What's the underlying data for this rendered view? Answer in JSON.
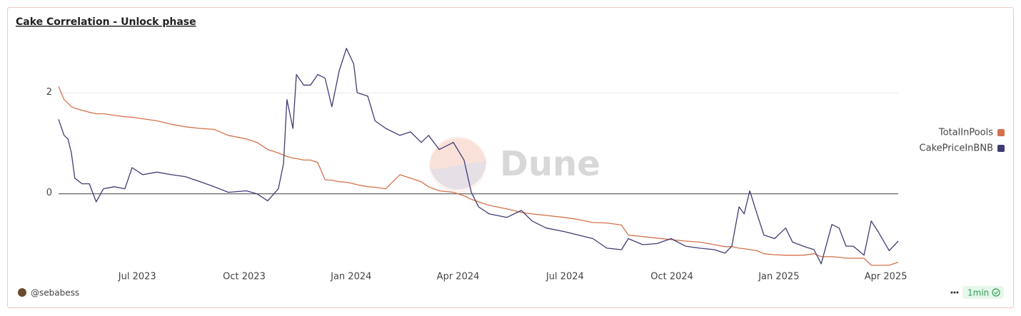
{
  "chart_data": {
    "type": "line",
    "title": "Cake Correlation - Unlock phase",
    "x": [
      2023.316,
      2023.329,
      2023.338,
      2023.346,
      2023.354,
      2023.371,
      2023.388,
      2023.404,
      2023.421,
      2023.446,
      2023.471,
      2023.488,
      2023.513,
      2023.546,
      2023.58,
      2023.613,
      2023.647,
      2023.68,
      2023.713,
      2023.755,
      2023.78,
      2023.805,
      2023.83,
      2023.842,
      2023.85,
      2023.864,
      2023.872,
      2023.889,
      2023.905,
      2023.922,
      2023.939,
      2023.955,
      2023.972,
      2023.989,
      2024.006,
      2024.014,
      2024.039,
      2024.056,
      2024.081,
      2024.114,
      2024.139,
      2024.164,
      2024.181,
      2024.206,
      2024.239,
      2024.264,
      2024.281,
      2024.298,
      2024.323,
      2024.364,
      2024.398,
      2024.423,
      2024.456,
      2024.498,
      2024.531,
      2024.565,
      2024.598,
      2024.632,
      2024.648,
      2024.682,
      2024.715,
      2024.748,
      2024.782,
      2024.815,
      2024.849,
      2024.874,
      2024.89,
      2024.907,
      2024.919,
      2024.932,
      2024.949,
      2024.965,
      2024.99,
      2025.016,
      2025.032,
      2025.057,
      2025.082,
      2025.099,
      2025.124,
      2025.141,
      2025.157,
      2025.174,
      2025.199,
      2025.216,
      2025.232,
      2025.258,
      2025.279
    ],
    "series": [
      {
        "name": "TotalInPools",
        "color": "#d4724c",
        "values": [
          2.13,
          1.87,
          1.8,
          1.73,
          1.7,
          1.66,
          1.62,
          1.59,
          1.59,
          1.56,
          1.53,
          1.52,
          1.49,
          1.45,
          1.38,
          1.33,
          1.3,
          1.28,
          1.16,
          1.09,
          1.02,
          0.88,
          0.81,
          0.77,
          0.74,
          0.71,
          0.7,
          0.67,
          0.67,
          0.62,
          0.28,
          0.27,
          0.24,
          0.23,
          0.2,
          0.18,
          0.14,
          0.13,
          0.1,
          0.38,
          0.31,
          0.24,
          0.14,
          0.06,
          0.03,
          -0.04,
          -0.11,
          -0.16,
          -0.23,
          -0.3,
          -0.37,
          -0.4,
          -0.43,
          -0.47,
          -0.51,
          -0.57,
          -0.58,
          -0.62,
          -0.82,
          -0.85,
          -0.88,
          -0.91,
          -0.94,
          -0.96,
          -1.01,
          -1.05,
          -1.05,
          -1.08,
          -1.09,
          -1.11,
          -1.13,
          -1.19,
          -1.21,
          -1.22,
          -1.22,
          -1.22,
          -1.19,
          -1.25,
          -1.25,
          -1.26,
          -1.28,
          -1.28,
          -1.28,
          -1.42,
          -1.42,
          -1.42,
          -1.36
        ]
      },
      {
        "name": "CakePriceInBNB",
        "color": "#3f3c73",
        "values": [
          1.48,
          1.16,
          1.09,
          0.81,
          0.31,
          0.2,
          0.2,
          -0.16,
          0.1,
          0.14,
          0.1,
          0.52,
          0.38,
          0.43,
          0.38,
          0.34,
          0.24,
          0.14,
          0.03,
          0.06,
          0,
          -0.14,
          0.1,
          0.6,
          1.87,
          1.3,
          2.37,
          2.16,
          2.16,
          2.37,
          2.3,
          1.73,
          2.44,
          2.89,
          2.58,
          2.01,
          1.94,
          1.45,
          1.3,
          1.16,
          1.23,
          1.02,
          1.16,
          0.88,
          1.02,
          0.67,
          0.03,
          -0.26,
          -0.4,
          -0.47,
          -0.33,
          -0.54,
          -0.68,
          -0.75,
          -0.82,
          -0.89,
          -1.08,
          -1.11,
          -0.89,
          -1.01,
          -0.99,
          -0.89,
          -1.04,
          -1.08,
          -1.11,
          -1.18,
          -1.04,
          -0.26,
          -0.4,
          0.06,
          -0.4,
          -0.82,
          -0.89,
          -0.68,
          -0.96,
          -1.04,
          -1.11,
          -1.39,
          -0.61,
          -0.68,
          -1.04,
          -1.04,
          -1.22,
          -0.54,
          -0.75,
          -1.13,
          -0.94
        ]
      }
    ],
    "xlim": [
      2023.316,
      2025.279
    ],
    "xticks": [
      {
        "value": 2023.5,
        "label": "Jul 2023"
      },
      {
        "value": 2023.75,
        "label": "Oct 2023"
      },
      {
        "value": 2024.0,
        "label": "Jan 2024"
      },
      {
        "value": 2024.25,
        "label": "Apr 2024"
      },
      {
        "value": 2024.5,
        "label": "Jul 2024"
      },
      {
        "value": 2024.75,
        "label": "Oct 2024"
      },
      {
        "value": 2025.0,
        "label": "Jan 2025"
      },
      {
        "value": 2025.25,
        "label": "Apr 2025"
      }
    ],
    "ylim": [
      -1.45,
      3.0
    ],
    "yticks": [
      0,
      2
    ],
    "grid": true,
    "legend": "right"
  },
  "watermark": "Dune",
  "footer": {
    "author": "@sebabess",
    "refresh": "1min"
  }
}
